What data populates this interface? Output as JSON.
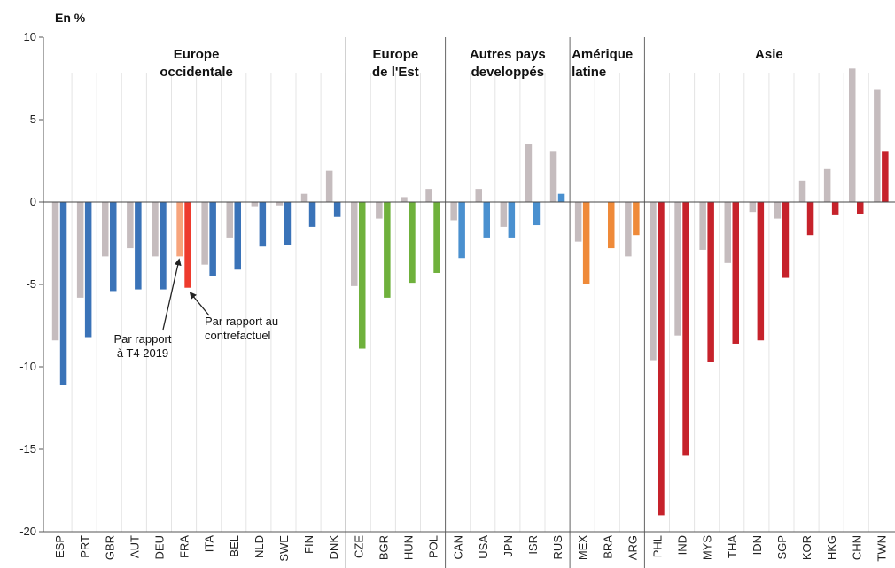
{
  "chart_data": {
    "type": "bar",
    "ylabel": "En %",
    "ylim": [
      -20,
      10
    ],
    "yticks": [
      10,
      5,
      0,
      -5,
      -10,
      -15,
      -20
    ],
    "grid": "vertical-light",
    "colors": {
      "t4": "#c5bcbe",
      "europe_occidentale": "#3a73b8",
      "europe_est": "#6fb13c",
      "autres_developpes": "#4a90cf",
      "amerique_latine": "#ef8a39",
      "asie": "#c6222b",
      "fra_t4": "#f7a57d",
      "fra_contrefactuel": "#ee3b2d"
    },
    "groups": [
      {
        "label_lines": [
          "Europe",
          "occidentale"
        ],
        "categories": [
          "ESP",
          "PRT",
          "GBR",
          "AUT",
          "DEU",
          "FRA",
          "ITA",
          "BEL",
          "NLD",
          "SWE",
          "FIN",
          "DNK"
        ],
        "color_key": "europe_occidentale"
      },
      {
        "label_lines": [
          "Europe",
          "de l'Est"
        ],
        "categories": [
          "CZE",
          "BGR",
          "HUN",
          "POL"
        ],
        "color_key": "europe_est"
      },
      {
        "label_lines": [
          "Autres pays",
          "developpés"
        ],
        "categories": [
          "CAN",
          "USA",
          "JPN",
          "ISR",
          "RUS"
        ],
        "color_key": "autres_developpes"
      },
      {
        "label_lines": [
          "Amérique",
          "latine"
        ],
        "categories": [
          "MEX",
          "BRA",
          "ARG"
        ],
        "color_key": "amerique_latine"
      },
      {
        "label_lines": [
          "Asie"
        ],
        "categories": [
          "PHL",
          "IND",
          "MYS",
          "THA",
          "IDN",
          "SGP",
          "KOR",
          "HKG",
          "CHN",
          "TWN"
        ],
        "color_key": "asie"
      }
    ],
    "series": [
      {
        "id": "t4",
        "values": [
          -8.4,
          -5.8,
          -3.3,
          -2.8,
          -3.3,
          -3.3,
          -3.8,
          -2.2,
          -0.3,
          -0.2,
          0.5,
          1.9,
          -5.1,
          -1.0,
          0.3,
          0.8,
          -1.1,
          0.8,
          -1.5,
          3.5,
          3.1,
          -2.4,
          0.0,
          -3.3,
          -9.6,
          -8.1,
          -2.9,
          -3.7,
          -0.6,
          -1.0,
          1.3,
          2.0,
          8.1,
          6.8
        ]
      },
      {
        "id": "contrefactuel",
        "values": [
          -11.1,
          -8.2,
          -5.4,
          -5.3,
          -5.3,
          -5.2,
          -4.5,
          -4.1,
          -2.7,
          -2.6,
          -1.5,
          -0.9,
          -8.9,
          -5.8,
          -4.9,
          -4.3,
          -3.4,
          -2.2,
          -2.2,
          -1.4,
          0.5,
          -5.0,
          -2.8,
          -2.0,
          -19.0,
          -15.4,
          -9.7,
          -8.6,
          -8.4,
          -4.6,
          -2.0,
          -0.8,
          -0.7,
          3.1
        ]
      }
    ],
    "annotations": [
      {
        "lines": [
          "Par rapport",
          "à T4 2019"
        ]
      },
      {
        "lines": [
          "Par rapport au",
          "contrefactuel"
        ]
      }
    ]
  }
}
